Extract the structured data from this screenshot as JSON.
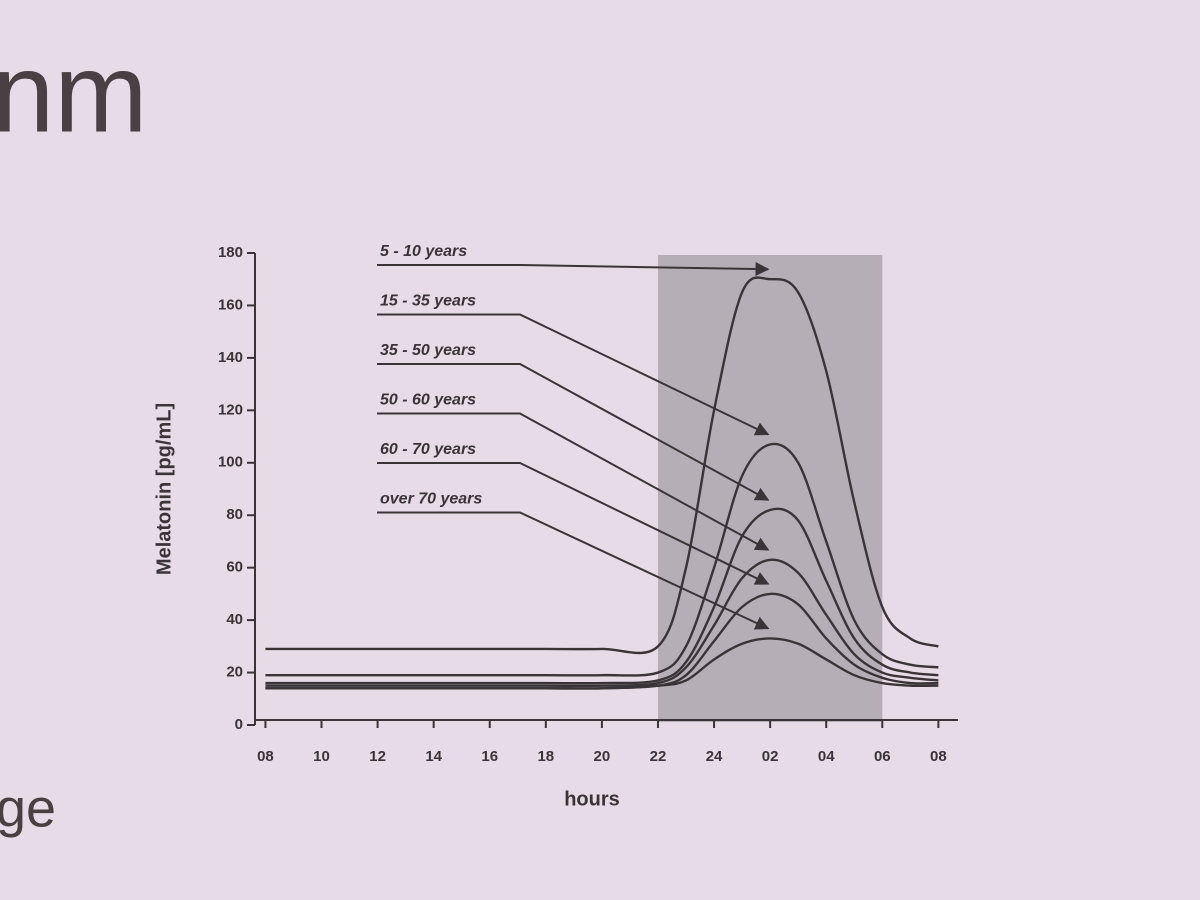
{
  "slide": {
    "title_fragment": "nm",
    "body_fragment": "ge"
  },
  "chart_data": {
    "type": "line",
    "x_label": "hours",
    "y_label": "Melatonin [pg/mL]",
    "x": [
      8,
      10,
      12,
      14,
      16,
      18,
      20,
      22,
      23,
      24,
      25,
      26,
      27,
      28,
      29,
      30,
      31,
      32
    ],
    "series": [
      {
        "name": "5 - 10 years",
        "color": "#3a3438",
        "values": [
          29,
          29,
          29,
          29,
          29,
          29,
          29,
          30,
          60,
          120,
          165,
          170,
          165,
          135,
          85,
          45,
          33,
          30
        ]
      },
      {
        "name": "15 - 35 years",
        "color": "#3a3438",
        "values": [
          19,
          19,
          19,
          19,
          19,
          19,
          19,
          20,
          30,
          60,
          95,
          107,
          100,
          70,
          40,
          27,
          23,
          22
        ]
      },
      {
        "name": "35 - 50 years",
        "color": "#3a3438",
        "values": [
          16,
          16,
          16,
          16,
          16,
          16,
          16,
          17,
          24,
          45,
          72,
          82,
          78,
          55,
          33,
          23,
          20,
          19
        ]
      },
      {
        "name": "50 - 60 years",
        "color": "#3a3438",
        "values": [
          15,
          15,
          15,
          15,
          15,
          15,
          15,
          16,
          22,
          38,
          56,
          63,
          58,
          42,
          27,
          20,
          18,
          17
        ]
      },
      {
        "name": "60 - 70 years",
        "color": "#3a3438",
        "values": [
          14,
          14,
          14,
          14,
          14,
          14,
          14,
          15,
          19,
          32,
          45,
          50,
          46,
          33,
          23,
          18,
          16,
          16
        ]
      },
      {
        "name": "over 70 years",
        "color": "#3a3438",
        "values": [
          14,
          14,
          14,
          14,
          14,
          14,
          14,
          15,
          17,
          25,
          31,
          33,
          31,
          25,
          19,
          16,
          15,
          15
        ]
      }
    ],
    "shaded_region": {
      "x": [
        22,
        30
      ],
      "color": "#a59fa6"
    },
    "xlim": [
      7.2,
      32.7
    ],
    "ylim": [
      0,
      180
    ],
    "xticks": [
      {
        "value": 8,
        "label": "08"
      },
      10,
      12,
      14,
      16,
      18,
      20,
      22,
      24,
      {
        "value": 26,
        "label": "02"
      },
      {
        "value": 28,
        "label": "04"
      },
      {
        "value": 30,
        "label": "06"
      },
      {
        "value": 32,
        "label": "08"
      }
    ],
    "yticks": [
      0,
      20,
      40,
      60,
      80,
      100,
      120,
      140,
      160,
      180
    ]
  }
}
